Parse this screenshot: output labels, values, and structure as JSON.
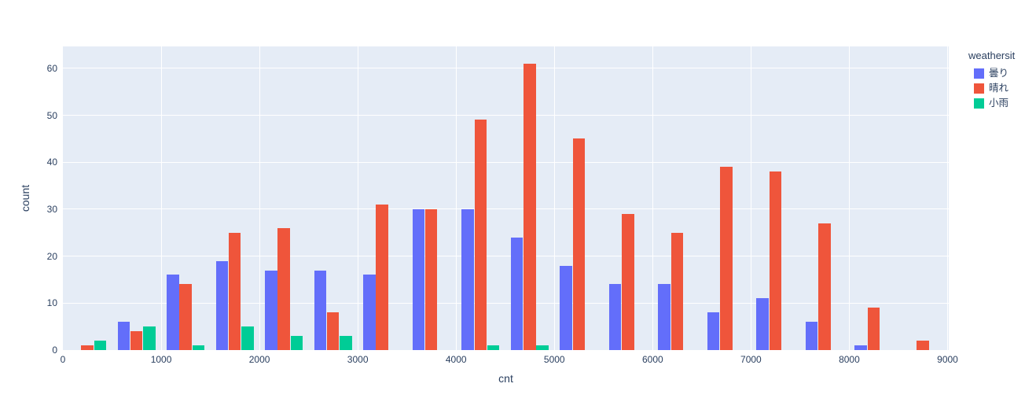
{
  "chart_data": {
    "type": "bar",
    "subtype": "grouped-histogram",
    "title": "",
    "xlabel": "cnt",
    "ylabel": "count",
    "legend_title": "weathersit",
    "legend_position": "top-right-outside",
    "grid": true,
    "xlim": [
      0,
      9000
    ],
    "ylim": [
      0,
      64.6
    ],
    "x_ticks": [
      0,
      1000,
      2000,
      3000,
      4000,
      5000,
      6000,
      7000,
      8000,
      9000
    ],
    "y_ticks": [
      0,
      10,
      20,
      30,
      40,
      50,
      60
    ],
    "bin_width": 500,
    "bins": [
      {
        "x0": 0,
        "x1": 500
      },
      {
        "x0": 500,
        "x1": 1000
      },
      {
        "x0": 1000,
        "x1": 1500
      },
      {
        "x0": 1500,
        "x1": 2000
      },
      {
        "x0": 2000,
        "x1": 2500
      },
      {
        "x0": 2500,
        "x1": 3000
      },
      {
        "x0": 3000,
        "x1": 3500
      },
      {
        "x0": 3500,
        "x1": 4000
      },
      {
        "x0": 4000,
        "x1": 4500
      },
      {
        "x0": 4500,
        "x1": 5000
      },
      {
        "x0": 5000,
        "x1": 5500
      },
      {
        "x0": 5500,
        "x1": 6000
      },
      {
        "x0": 6000,
        "x1": 6500
      },
      {
        "x0": 6500,
        "x1": 7000
      },
      {
        "x0": 7000,
        "x1": 7500
      },
      {
        "x0": 7500,
        "x1": 8000
      },
      {
        "x0": 8000,
        "x1": 8500
      },
      {
        "x0": 8500,
        "x1": 9000
      }
    ],
    "series": [
      {
        "name": "曇り",
        "color": "#636EFA",
        "values": [
          0,
          6,
          16,
          19,
          17,
          17,
          16,
          30,
          30,
          24,
          18,
          14,
          14,
          8,
          11,
          6,
          1,
          0
        ]
      },
      {
        "name": "晴れ",
        "color": "#EF553B",
        "values": [
          1,
          4,
          14,
          25,
          26,
          8,
          31,
          30,
          49,
          61,
          45,
          29,
          25,
          39,
          38,
          27,
          9,
          2
        ]
      },
      {
        "name": "小雨",
        "color": "#00CC96",
        "values": [
          2,
          5,
          1,
          5,
          3,
          3,
          0,
          0,
          1,
          1,
          0,
          0,
          0,
          0,
          0,
          0,
          0,
          0
        ]
      }
    ],
    "colors": {
      "plot_background": "#E5ECF6",
      "paper_background": "#FFFFFF",
      "gridline": "#FFFFFF",
      "text": "#2A3F5F"
    }
  }
}
